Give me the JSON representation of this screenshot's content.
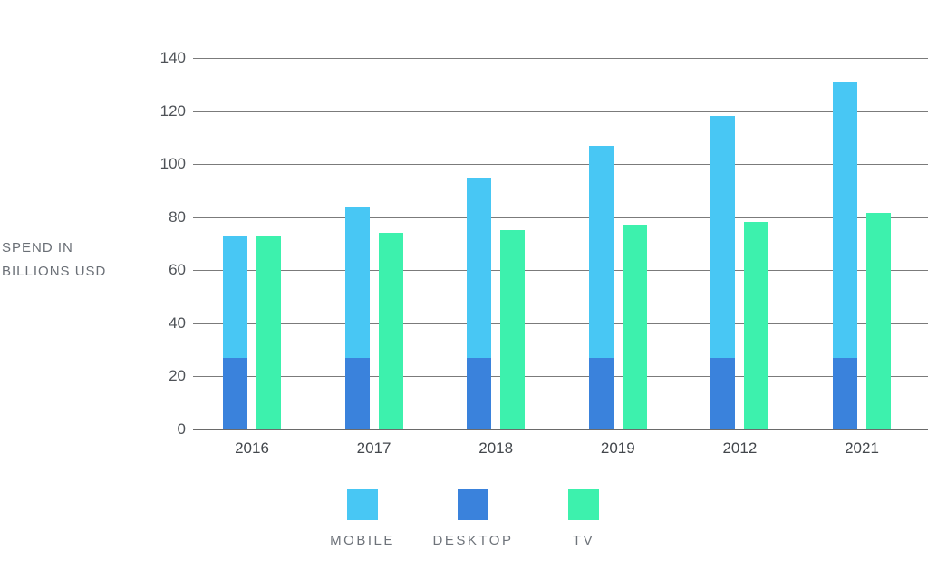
{
  "axis_title": {
    "line1": "SPEND IN",
    "line2": "BILLIONS USD"
  },
  "colors": {
    "mobile": "#48c7f4",
    "desktop": "#3a82dc",
    "tv": "#3df1ad",
    "gridline": "#7b7b7b",
    "background": "#ffffff"
  },
  "chart_data": {
    "type": "bar",
    "title": "",
    "xlabel": "",
    "ylabel": "SPEND IN BILLIONS USD",
    "categories": [
      "2016",
      "2017",
      "2018",
      "2019",
      "2012",
      "2021"
    ],
    "y_ticks": [
      0,
      20,
      40,
      60,
      80,
      100,
      120,
      140
    ],
    "ylim": [
      0,
      140
    ],
    "grid": true,
    "legend_position": "bottom",
    "structure": "Each category has two bars: one blue bar where the bottom segment (DESKTOP) overlays the lower part of the MOBILE total, and a separate green TV bar.",
    "series": [
      {
        "name": "MOBILE",
        "color": "#48c7f4",
        "values": [
          72.5,
          84,
          95,
          107,
          118,
          131
        ]
      },
      {
        "name": "DESKTOP",
        "color": "#3a82dc",
        "values": [
          27,
          27,
          27,
          27,
          27,
          27
        ]
      },
      {
        "name": "TV",
        "color": "#3df1ad",
        "values": [
          72.5,
          74,
          75,
          77,
          78,
          81.5
        ]
      }
    ]
  },
  "legend": {
    "items": [
      {
        "label": "MOBILE",
        "color": "#48c7f4"
      },
      {
        "label": "DESKTOP",
        "color": "#3a82dc"
      },
      {
        "label": "TV",
        "color": "#3df1ad"
      }
    ]
  }
}
